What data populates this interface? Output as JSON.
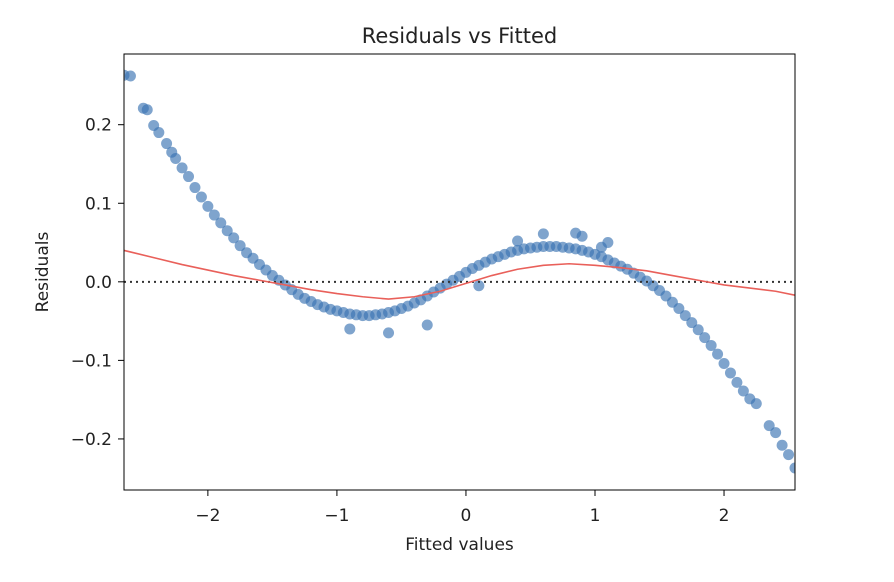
{
  "chart_data": {
    "type": "scatter",
    "title": "Residuals vs Fitted",
    "xlabel": "Fitted values",
    "ylabel": "Residuals",
    "xlim": [
      -2.65,
      2.55
    ],
    "ylim": [
      -0.265,
      0.29
    ],
    "xticks": [
      -2,
      -1,
      0,
      1,
      2
    ],
    "xtick_labels": [
      "−2",
      "−1",
      "0",
      "1",
      "2"
    ],
    "yticks": [
      -0.2,
      -0.1,
      0.0,
      0.1,
      0.2
    ],
    "ytick_labels": [
      "−0.2",
      "−0.1",
      "0.0",
      "0.1",
      "0.2"
    ],
    "grid": false,
    "reference_line": {
      "y": 0,
      "style": "dotted",
      "color": "#333333"
    },
    "points_color": "#3b73b2",
    "points": [
      [
        -2.65,
        0.263
      ],
      [
        -2.6,
        0.262
      ],
      [
        -2.5,
        0.221
      ],
      [
        -2.47,
        0.219
      ],
      [
        -2.42,
        0.199
      ],
      [
        -2.38,
        0.19
      ],
      [
        -2.32,
        0.176
      ],
      [
        -2.28,
        0.165
      ],
      [
        -2.25,
        0.157
      ],
      [
        -2.2,
        0.145
      ],
      [
        -2.15,
        0.134
      ],
      [
        -2.1,
        0.12
      ],
      [
        -2.05,
        0.108
      ],
      [
        -2.0,
        0.096
      ],
      [
        -1.95,
        0.085
      ],
      [
        -1.9,
        0.075
      ],
      [
        -1.85,
        0.065
      ],
      [
        -1.8,
        0.056
      ],
      [
        -1.75,
        0.046
      ],
      [
        -1.7,
        0.037
      ],
      [
        -1.65,
        0.03
      ],
      [
        -1.6,
        0.022
      ],
      [
        -1.55,
        0.015
      ],
      [
        -1.5,
        0.008
      ],
      [
        -1.45,
        0.002
      ],
      [
        -1.4,
        -0.004
      ],
      [
        -1.35,
        -0.01
      ],
      [
        -1.3,
        -0.016
      ],
      [
        -1.25,
        -0.021
      ],
      [
        -1.2,
        -0.025
      ],
      [
        -1.15,
        -0.029
      ],
      [
        -1.1,
        -0.032
      ],
      [
        -1.05,
        -0.035
      ],
      [
        -1.0,
        -0.037
      ],
      [
        -0.95,
        -0.039
      ],
      [
        -0.9,
        -0.041
      ],
      [
        -0.85,
        -0.042
      ],
      [
        -0.8,
        -0.043
      ],
      [
        -0.75,
        -0.043
      ],
      [
        -0.7,
        -0.042
      ],
      [
        -0.65,
        -0.041
      ],
      [
        -0.6,
        -0.039
      ],
      [
        -0.55,
        -0.037
      ],
      [
        -0.5,
        -0.034
      ],
      [
        -0.45,
        -0.031
      ],
      [
        -0.4,
        -0.027
      ],
      [
        -0.35,
        -0.023
      ],
      [
        -0.3,
        -0.018
      ],
      [
        -0.25,
        -0.013
      ],
      [
        -0.2,
        -0.008
      ],
      [
        -0.15,
        -0.003
      ],
      [
        -0.1,
        0.002
      ],
      [
        -0.05,
        0.007
      ],
      [
        0.0,
        0.012
      ],
      [
        0.05,
        0.017
      ],
      [
        0.1,
        0.021
      ],
      [
        0.15,
        0.025
      ],
      [
        0.2,
        0.029
      ],
      [
        0.25,
        0.032
      ],
      [
        0.3,
        0.035
      ],
      [
        0.35,
        0.038
      ],
      [
        0.4,
        0.04
      ],
      [
        0.45,
        0.042
      ],
      [
        0.5,
        0.043
      ],
      [
        0.55,
        0.044
      ],
      [
        0.6,
        0.045
      ],
      [
        0.65,
        0.045
      ],
      [
        0.7,
        0.045
      ],
      [
        0.75,
        0.044
      ],
      [
        0.8,
        0.043
      ],
      [
        0.85,
        0.042
      ],
      [
        0.9,
        0.04
      ],
      [
        0.95,
        0.038
      ],
      [
        1.0,
        0.035
      ],
      [
        1.05,
        0.032
      ],
      [
        1.1,
        0.028
      ],
      [
        1.15,
        0.024
      ],
      [
        1.2,
        0.02
      ],
      [
        1.25,
        0.016
      ],
      [
        1.3,
        0.011
      ],
      [
        1.35,
        0.006
      ],
      [
        1.4,
        0.001
      ],
      [
        1.45,
        -0.005
      ],
      [
        1.5,
        -0.011
      ],
      [
        1.55,
        -0.018
      ],
      [
        1.6,
        -0.026
      ],
      [
        1.65,
        -0.034
      ],
      [
        1.7,
        -0.043
      ],
      [
        1.75,
        -0.052
      ],
      [
        1.8,
        -0.061
      ],
      [
        1.85,
        -0.071
      ],
      [
        1.9,
        -0.081
      ],
      [
        1.95,
        -0.092
      ],
      [
        2.0,
        -0.104
      ],
      [
        2.05,
        -0.116
      ],
      [
        2.1,
        -0.128
      ],
      [
        2.15,
        -0.139
      ],
      [
        2.2,
        -0.149
      ],
      [
        2.25,
        -0.155
      ],
      [
        2.35,
        -0.183
      ],
      [
        2.4,
        -0.192
      ],
      [
        2.45,
        -0.208
      ],
      [
        2.5,
        -0.22
      ],
      [
        2.55,
        -0.237
      ],
      [
        -0.9,
        -0.06
      ],
      [
        -0.6,
        -0.065
      ],
      [
        -0.3,
        -0.055
      ],
      [
        0.1,
        -0.005
      ],
      [
        0.4,
        0.052
      ],
      [
        0.6,
        0.061
      ],
      [
        0.85,
        0.062
      ],
      [
        0.9,
        0.058
      ],
      [
        1.05,
        0.044
      ],
      [
        1.1,
        0.05
      ]
    ],
    "trend_line": {
      "color": "#e9605a",
      "points": [
        [
          -2.65,
          0.04
        ],
        [
          -2.4,
          0.03
        ],
        [
          -2.2,
          0.022
        ],
        [
          -2.0,
          0.015
        ],
        [
          -1.8,
          0.008
        ],
        [
          -1.6,
          0.002
        ],
        [
          -1.4,
          -0.004
        ],
        [
          -1.2,
          -0.01
        ],
        [
          -1.0,
          -0.015
        ],
        [
          -0.8,
          -0.019
        ],
        [
          -0.6,
          -0.022
        ],
        [
          -0.4,
          -0.019
        ],
        [
          -0.2,
          -0.012
        ],
        [
          0.0,
          -0.002
        ],
        [
          0.2,
          0.008
        ],
        [
          0.4,
          0.016
        ],
        [
          0.6,
          0.021
        ],
        [
          0.8,
          0.023
        ],
        [
          1.0,
          0.021
        ],
        [
          1.2,
          0.018
        ],
        [
          1.4,
          0.014
        ],
        [
          1.6,
          0.008
        ],
        [
          1.8,
          0.002
        ],
        [
          2.0,
          -0.004
        ],
        [
          2.2,
          -0.008
        ],
        [
          2.4,
          -0.012
        ],
        [
          2.55,
          -0.017
        ]
      ]
    }
  }
}
